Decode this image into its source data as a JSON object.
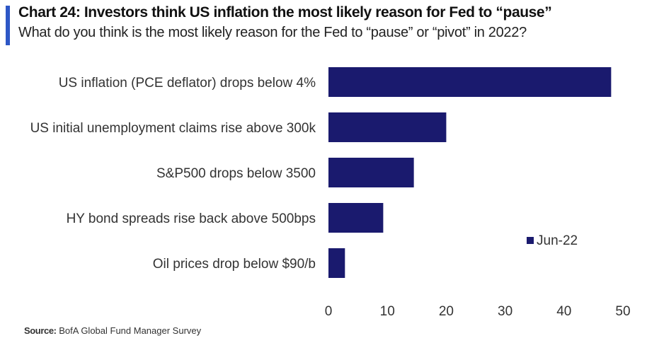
{
  "title": "Chart 24: Investors think US inflation the most likely reason for Fed to “pause”",
  "subtitle": "What do you think is the most likely reason for the Fed to “pause” or “pivot” in 2022?",
  "source": {
    "label": "Source:",
    "text": "BofA Global Fund Manager Survey"
  },
  "colors": {
    "accent": "#2d57c6",
    "bar": "#1a1a6e"
  },
  "chart_data": {
    "type": "bar",
    "orientation": "horizontal",
    "categories": [
      "US inflation (PCE deflator) drops below 4%",
      "US initial unemployment claims rise above 300k",
      "S&P500 drops below 3500",
      "HY bond spreads rise back above 500bps",
      "Oil prices drop below $90/b"
    ],
    "series": [
      {
        "name": "Jun-22",
        "values": [
          48,
          20,
          14.5,
          9.3,
          2.8
        ]
      }
    ],
    "xlim": [
      0,
      50
    ],
    "xticks": [
      0,
      10,
      20,
      30,
      40,
      50
    ],
    "grid": false,
    "legend": "right"
  }
}
